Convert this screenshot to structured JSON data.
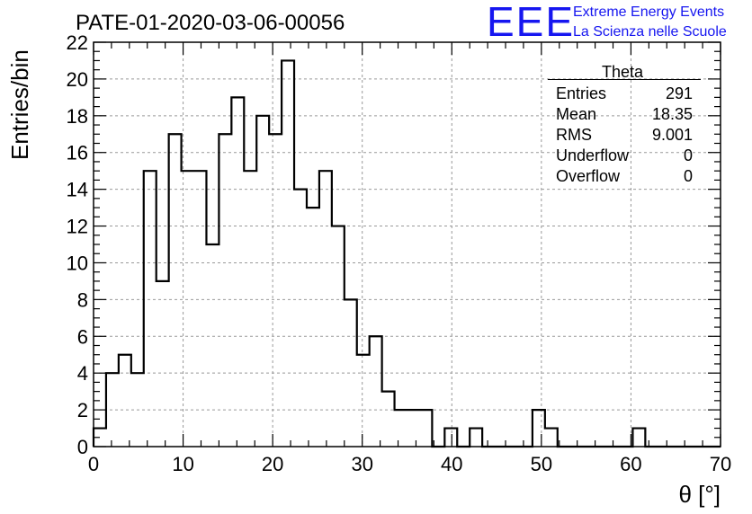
{
  "chart_data": {
    "type": "bar",
    "title": "PATE-01-2020-03-06-00056",
    "xlabel": "θ [°]",
    "ylabel": "Entries/bin",
    "xlim": [
      0,
      70
    ],
    "ylim": [
      0,
      22
    ],
    "x_ticks": [
      0,
      10,
      20,
      30,
      40,
      50,
      60,
      70
    ],
    "y_ticks": [
      0,
      2,
      4,
      6,
      8,
      10,
      12,
      14,
      16,
      18,
      20,
      22
    ],
    "grid": true,
    "bin_edges": [
      0,
      1.4,
      2.8,
      4.2,
      5.6,
      7,
      8.4,
      9.8,
      11.2,
      12.6,
      14,
      15.4,
      16.8,
      18.2,
      19.6,
      21,
      22.4,
      23.8,
      25.2,
      26.6,
      28,
      29.4,
      30.8,
      32.2,
      33.6,
      35,
      36.4,
      37.8,
      39.2,
      40.6,
      42,
      43.4,
      44.8,
      46.2,
      47.6,
      49,
      50.4,
      51.8,
      53.2,
      54.6,
      56,
      57.4,
      58.8,
      60.2,
      61.6,
      63,
      64.4,
      65.8,
      67.2,
      68.6,
      70
    ],
    "values": [
      1,
      4,
      5,
      4,
      15,
      9,
      17,
      15,
      15,
      11,
      17,
      19,
      15,
      18,
      17,
      21,
      14,
      13,
      15,
      12,
      8,
      5,
      6,
      3,
      2,
      2,
      2,
      0,
      1,
      0,
      1,
      0,
      0,
      0,
      0,
      2,
      1,
      0,
      0,
      0,
      0,
      0,
      0,
      1,
      0,
      0,
      0,
      0,
      0,
      0
    ],
    "color": "#000000",
    "stats_box": {
      "name": "Theta",
      "entries_label": "Entries",
      "entries_value": "291",
      "mean_label": "Mean",
      "mean_value": "18.35",
      "rms_label": "RMS",
      "rms_value": "9.001",
      "underflow_label": "Underflow",
      "underflow_value": "0",
      "overflow_label": "Overflow",
      "overflow_value": "0",
      "legend_position": "top-right"
    }
  },
  "logo": {
    "mark": "EEE",
    "line1": "Extreme Energy Events",
    "line2": "La Scienza nelle Scuole",
    "color": "#1616f0"
  }
}
